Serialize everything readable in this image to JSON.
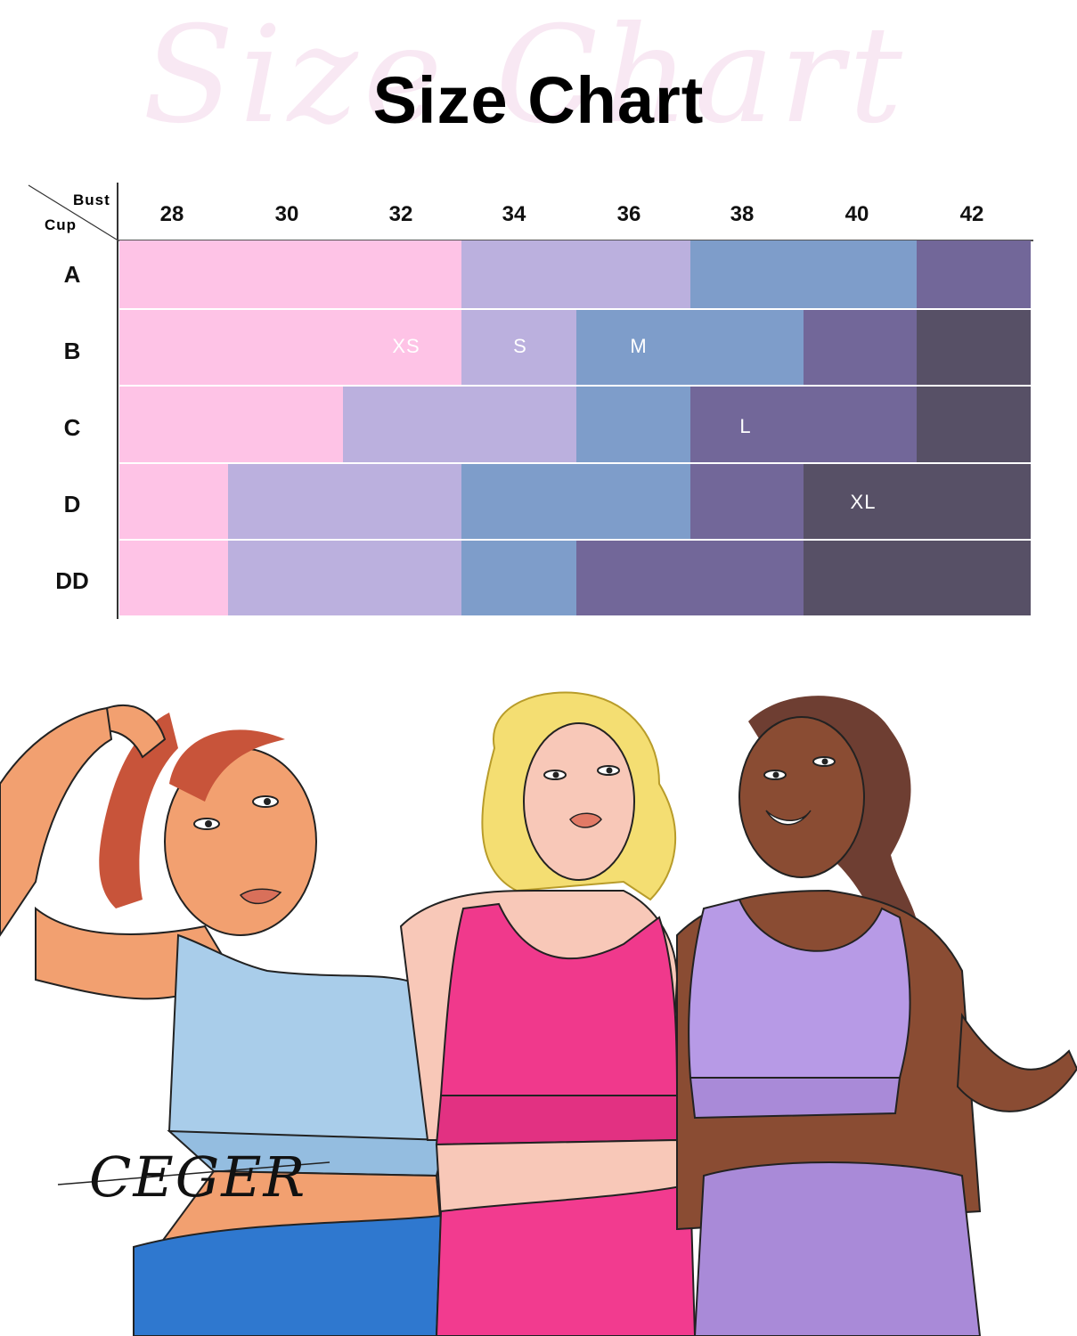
{
  "watermark": "Size Chart",
  "title": "Size Chart",
  "table": {
    "corner_bust": "Bust",
    "corner_cup": "Cup",
    "bust_sizes": [
      "28",
      "30",
      "32",
      "34",
      "36",
      "38",
      "40",
      "42"
    ],
    "cup_sizes": [
      "A",
      "B",
      "C",
      "D",
      "DD"
    ],
    "size_labels": [
      "XS",
      "S",
      "M",
      "L",
      "XL"
    ],
    "colors": {
      "XS": "#fec3e6",
      "S": "#bbb0de",
      "M": "#7e9dca",
      "L": "#726799",
      "XL": "#575066"
    },
    "grid": [
      [
        "XS",
        "XS",
        "XS",
        "S",
        "S",
        "M",
        "M",
        "L"
      ],
      [
        "XS",
        "XS",
        "XS",
        "S",
        "M",
        "M",
        "L",
        "XL"
      ],
      [
        "XS",
        "XS",
        "S",
        "S",
        "M",
        "L",
        "L",
        "XL"
      ],
      [
        "XS",
        "S",
        "S",
        "M",
        "M",
        "L",
        "XL",
        "XL"
      ],
      [
        "XS",
        "S",
        "S",
        "M",
        "L",
        "L",
        "XL",
        "XL"
      ]
    ]
  },
  "brand_signature": "CEGER"
}
